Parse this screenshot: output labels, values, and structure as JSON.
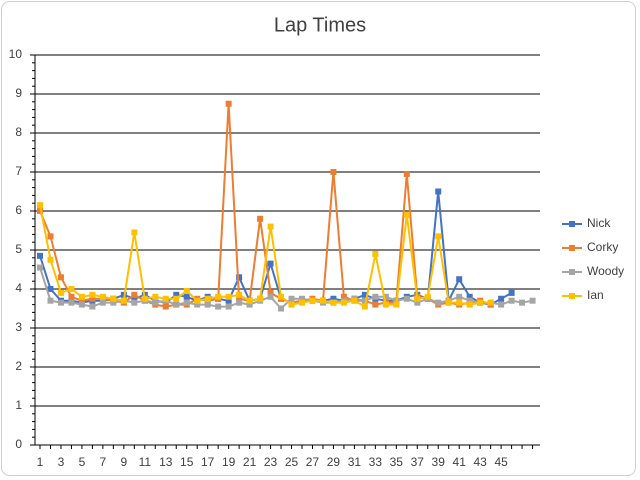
{
  "chart_data": {
    "type": "line",
    "title": "Lap Times",
    "categories": [
      1,
      null,
      3,
      null,
      5,
      null,
      7,
      null,
      9,
      null,
      11,
      null,
      13,
      null,
      15,
      null,
      17,
      null,
      19,
      null,
      21,
      null,
      23,
      null,
      25,
      null,
      27,
      null,
      29,
      null,
      31,
      null,
      33,
      null,
      35,
      null,
      37,
      null,
      39,
      null,
      41,
      null,
      43,
      null,
      45,
      null,
      null,
      null
    ],
    "ylim": [
      0,
      10
    ],
    "yticks": [
      0,
      1,
      2,
      3,
      4,
      5,
      6,
      7,
      8,
      9,
      10
    ],
    "grid": true,
    "legend": "right",
    "series": [
      {
        "name": "Nick",
        "color": "#4472c4",
        "values": [
          4.85,
          4.0,
          3.7,
          3.7,
          3.65,
          3.7,
          3.7,
          3.75,
          3.85,
          3.75,
          3.85,
          3.7,
          3.65,
          3.85,
          3.8,
          3.7,
          3.8,
          3.75,
          3.7,
          4.3,
          3.7,
          3.75,
          4.65,
          3.75,
          3.65,
          3.7,
          3.7,
          3.7,
          3.75,
          3.7,
          3.75,
          3.85,
          3.75,
          3.7,
          3.7,
          3.8,
          3.85,
          3.75,
          6.5,
          3.7,
          4.25,
          3.8,
          3.65,
          3.6,
          3.75,
          3.9,
          null,
          null
        ]
      },
      {
        "name": "Corky",
        "color": "#ed7d31",
        "values": [
          6.0,
          5.35,
          4.3,
          3.8,
          3.7,
          3.75,
          3.75,
          3.7,
          3.65,
          3.85,
          3.7,
          3.6,
          3.55,
          3.6,
          3.6,
          3.75,
          3.7,
          3.75,
          8.75,
          3.75,
          3.7,
          5.8,
          3.9,
          3.75,
          3.65,
          3.7,
          3.75,
          3.7,
          7.0,
          3.8,
          3.7,
          3.7,
          3.6,
          3.65,
          3.65,
          6.95,
          3.8,
          3.75,
          3.6,
          3.65,
          3.6,
          3.65,
          3.7,
          3.6,
          null,
          null,
          null,
          null
        ]
      },
      {
        "name": "Woody",
        "color": "#a5a5a5",
        "values": [
          4.55,
          3.7,
          3.65,
          3.65,
          3.6,
          3.55,
          3.65,
          3.65,
          3.7,
          3.65,
          3.7,
          3.65,
          3.7,
          3.6,
          3.65,
          3.6,
          3.6,
          3.55,
          3.55,
          3.65,
          3.6,
          3.7,
          3.8,
          3.5,
          3.75,
          3.75,
          3.7,
          3.65,
          3.65,
          3.7,
          3.75,
          3.7,
          3.8,
          3.8,
          3.7,
          3.75,
          3.65,
          3.75,
          3.65,
          3.7,
          3.8,
          3.7,
          3.65,
          3.65,
          3.6,
          3.7,
          3.65,
          3.7
        ]
      },
      {
        "name": "Ian",
        "color": "#ffc000",
        "values": [
          6.15,
          4.75,
          3.9,
          4.0,
          3.8,
          3.85,
          3.8,
          3.75,
          3.7,
          5.45,
          3.75,
          3.8,
          3.75,
          3.75,
          3.95,
          3.7,
          3.75,
          3.8,
          3.8,
          3.85,
          3.7,
          3.75,
          5.6,
          3.8,
          3.6,
          3.65,
          3.7,
          3.7,
          3.65,
          3.65,
          3.7,
          3.55,
          4.9,
          3.6,
          3.6,
          5.9,
          3.75,
          3.8,
          5.35,
          3.65,
          3.65,
          3.6,
          3.65,
          3.65,
          null,
          null,
          null,
          null
        ]
      }
    ]
  }
}
